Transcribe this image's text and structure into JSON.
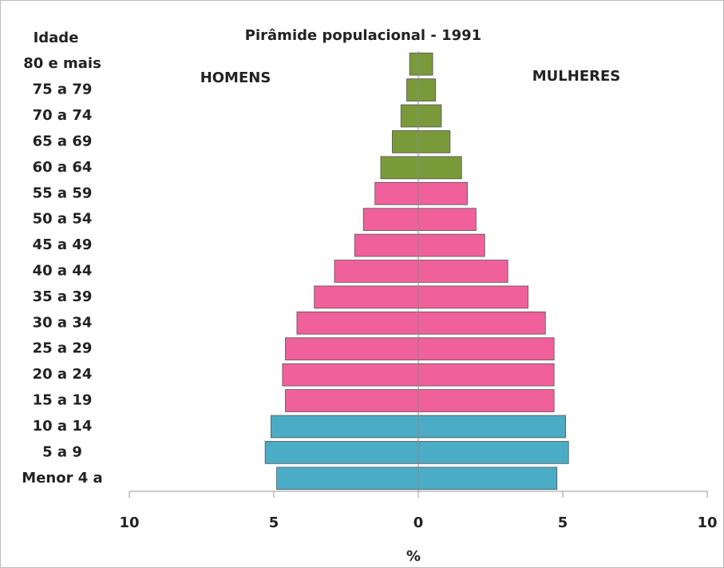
{
  "chart_data": {
    "type": "pyramid",
    "title": "Pirâmide populacional - 1991",
    "y_label": "Idade",
    "x_label": "%",
    "categories": [
      "Menor 4 a",
      "5 a 9",
      "10 a 14",
      "15 a 19",
      "20 a 24",
      "25 a 29",
      "30 a 34",
      "35 a 39",
      "40 a 44",
      "45 a 49",
      "50 a 54",
      "55 a 59",
      "60 a 64",
      "65 a 69",
      "70 a 74",
      "75 a 79",
      "80  e mais"
    ],
    "colors": [
      "#4bacc6",
      "#4bacc6",
      "#4bacc6",
      "#f0609a",
      "#f0609a",
      "#f0609a",
      "#f0609a",
      "#f0609a",
      "#f0609a",
      "#f0609a",
      "#f0609a",
      "#f0609a",
      "#7a9a3a",
      "#7a9a3a",
      "#7a9a3a",
      "#7a9a3a",
      "#7a9a3a"
    ],
    "series": [
      {
        "name": "HOMENS",
        "values": [
          -4.9,
          -5.3,
          -5.1,
          -4.6,
          -4.7,
          -4.6,
          -4.2,
          -3.6,
          -2.9,
          -2.2,
          -1.9,
          -1.5,
          -1.3,
          -0.9,
          -0.6,
          -0.4,
          -0.3
        ]
      },
      {
        "name": "MULHERES",
        "values": [
          4.8,
          5.2,
          5.1,
          4.7,
          4.7,
          4.7,
          4.4,
          3.8,
          3.1,
          2.3,
          2.0,
          1.7,
          1.5,
          1.1,
          0.8,
          0.6,
          0.5
        ]
      }
    ],
    "xlim": [
      -10,
      10
    ],
    "xticks": [
      {
        "value": -10,
        "label": "10"
      },
      {
        "value": -5,
        "label": "5"
      },
      0,
      5,
      10
    ]
  }
}
